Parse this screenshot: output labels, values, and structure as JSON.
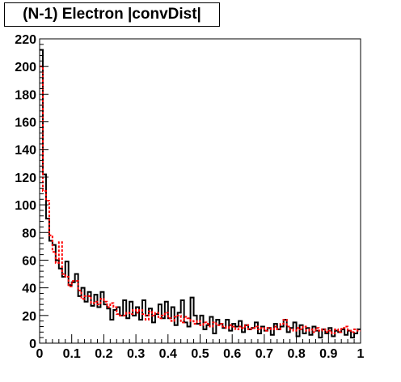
{
  "chart_data": {
    "type": "histogram",
    "title": "(N-1) Electron |convDist|",
    "xlabel": "",
    "ylabel": "",
    "xlim": [
      0,
      1
    ],
    "ylim": [
      0,
      220
    ],
    "bin_width": 0.01,
    "x_ticks": [
      "0",
      "0.1",
      "0.2",
      "0.3",
      "0.4",
      "0.5",
      "0.6",
      "0.7",
      "0.8",
      "0.9",
      "1"
    ],
    "x_tick_values": [
      0,
      0.1,
      0.2,
      0.3,
      0.4,
      0.5,
      0.6,
      0.7,
      0.8,
      0.9,
      1
    ],
    "y_ticks": [
      "0",
      "20",
      "40",
      "60",
      "80",
      "100",
      "120",
      "140",
      "160",
      "180",
      "200",
      "220"
    ],
    "y_tick_values": [
      0,
      20,
      40,
      60,
      80,
      100,
      120,
      140,
      160,
      180,
      200,
      220
    ],
    "grid": false,
    "legend": "none",
    "series": [
      {
        "color": "#000000",
        "style": "solid",
        "values": [
          212,
          122,
          90,
          74,
          71,
          60,
          54,
          48,
          59,
          42,
          44,
          50,
          34,
          40,
          30,
          37,
          27,
          35,
          26,
          37,
          28,
          25,
          17,
          24,
          26,
          20,
          31,
          18,
          30,
          20,
          26,
          17,
          31,
          20,
          25,
          15,
          21,
          28,
          18,
          30,
          18,
          26,
          13,
          22,
          31,
          15,
          12,
          33,
          20,
          14,
          20,
          10,
          13,
          19,
          7,
          17,
          14,
          11,
          17,
          9,
          14,
          12,
          16,
          8,
          13,
          10,
          11,
          15,
          7,
          12,
          9,
          11,
          6,
          14,
          10,
          12,
          17,
          8,
          11,
          15,
          5,
          13,
          7,
          11,
          6,
          12,
          9,
          4,
          10,
          7,
          11,
          5,
          9,
          8,
          10,
          6,
          9,
          4,
          7,
          10
        ]
      },
      {
        "color": "#ff0000",
        "style": "dotted",
        "values": [
          200,
          110,
          103,
          78,
          66,
          58,
          73,
          50,
          48,
          41,
          45,
          45,
          38,
          32,
          34,
          34,
          29,
          30,
          28,
          32,
          30,
          26,
          29,
          26,
          21,
          20,
          20,
          22,
          21,
          24,
          22,
          24,
          21,
          17,
          23,
          20,
          22,
          18,
          20,
          22,
          18,
          16,
          19,
          20,
          15,
          19,
          18,
          16,
          14,
          16,
          13,
          15,
          14,
          12,
          15,
          13,
          14,
          12,
          11,
          13,
          12,
          10,
          12,
          11,
          13,
          10,
          11,
          12,
          10,
          11,
          9,
          11,
          10,
          12,
          10,
          14,
          17,
          12,
          10,
          9,
          11,
          10,
          12,
          9,
          10,
          8,
          11,
          9,
          10,
          8,
          9,
          7,
          10,
          8,
          11,
          12,
          9,
          8,
          10,
          9
        ]
      }
    ]
  }
}
